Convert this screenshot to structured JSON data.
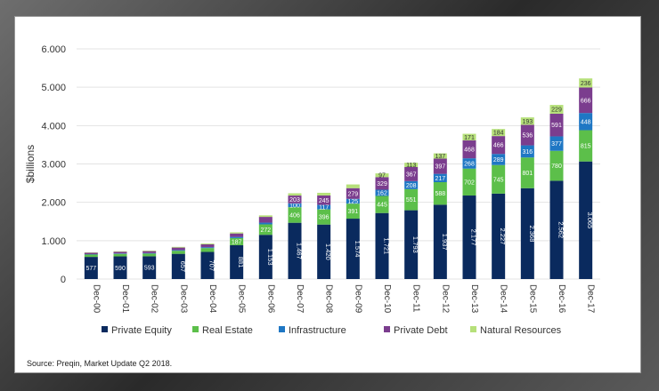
{
  "chart_data": {
    "type": "bar",
    "stacked": true,
    "ylabel": "$billions",
    "ylim": [
      0,
      6000
    ],
    "yticks": [
      0,
      1000,
      2000,
      3000,
      4000,
      5000,
      6000
    ],
    "ytick_labels": [
      "0",
      "1.000",
      "2.000",
      "3.000",
      "4.000",
      "5.000",
      "6.000"
    ],
    "grid": true,
    "legend_position": "bottom",
    "categories": [
      "Dec-00",
      "Dec-01",
      "Dec-02",
      "Dec-03",
      "Dec-04",
      "Dec-05",
      "Dec-06",
      "Dec-07",
      "Dec-08",
      "Dec-09",
      "Dec-10",
      "Dec-11",
      "Dec-12",
      "Dec-13",
      "Dec-14",
      "Dec-15",
      "Dec-16",
      "Dec-17"
    ],
    "series": [
      {
        "name": "Private Equity",
        "color": "#0a2a5e",
        "values": [
          577,
          590,
          593,
          657,
          707,
          881,
          1153,
          1467,
          1420,
          1574,
          1721,
          1793,
          1937,
          2177,
          2227,
          2368,
          2562,
          3065
        ],
        "labels": [
          "577",
          "590",
          "593",
          "657",
          "707",
          "881",
          "1.153",
          "1.467",
          "1.420",
          "1.574",
          "1.721",
          "1.793",
          "1.937",
          "2.177",
          "2.227",
          "2.368",
          "2.562",
          "3.065"
        ]
      },
      {
        "name": "Real Estate",
        "color": "#5cbf4a",
        "values": [
          60,
          65,
          70,
          80,
          100,
          187,
          272,
          406,
          396,
          391,
          445,
          551,
          588,
          702,
          745,
          801,
          780,
          815
        ],
        "labels": [
          "",
          "",
          "",
          "",
          "",
          "187",
          "272",
          "406",
          "396",
          "391",
          "445",
          "551",
          "588",
          "702",
          "745",
          "801",
          "780",
          "815"
        ]
      },
      {
        "name": "Infrastructure",
        "color": "#1f77c4",
        "values": [
          10,
          12,
          14,
          18,
          22,
          30,
          45,
          100,
          117,
          125,
          162,
          208,
          217,
          268,
          289,
          316,
          377,
          448
        ],
        "labels": [
          "",
          "",
          "",
          "",
          "",
          "",
          "",
          "100",
          "117",
          "125",
          "162",
          "208",
          "217",
          "268",
          "289",
          "316",
          "377",
          "448"
        ]
      },
      {
        "name": "Private Debt",
        "color": "#7b3d8e",
        "values": [
          40,
          45,
          50,
          65,
          75,
          90,
          150,
          203,
          245,
          279,
          329,
          367,
          397,
          468,
          466,
          536,
          591,
          666
        ],
        "labels": [
          "",
          "",
          "",
          "",
          "",
          "",
          "",
          "203",
          "245",
          "279",
          "329",
          "367",
          "397",
          "468",
          "466",
          "536",
          "591",
          "666"
        ]
      },
      {
        "name": "Natural Resources",
        "color": "#b6e07a",
        "values": [
          10,
          12,
          14,
          18,
          22,
          30,
          40,
          60,
          70,
          97,
          97,
          113,
          137,
          171,
          184,
          193,
          229,
          236
        ],
        "labels": [
          "",
          "",
          "",
          "",
          "",
          "",
          "",
          "",
          "",
          "",
          "97",
          "113",
          "137",
          "171",
          "184",
          "193",
          "229",
          "236"
        ]
      }
    ]
  },
  "source_note": "Source: Preqin, Market Update Q2 2018."
}
